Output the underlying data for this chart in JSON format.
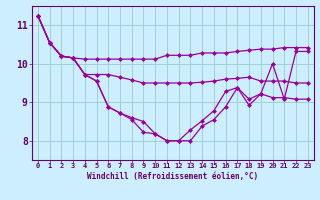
{
  "xlabel": "Windchill (Refroidissement éolien,°C)",
  "bg_color": "#cceeff",
  "line_color": "#990099",
  "grid_color": "#99cccc",
  "xlim": [
    -0.5,
    23.5
  ],
  "ylim": [
    7.5,
    11.5
  ],
  "yticks": [
    8,
    9,
    10,
    11
  ],
  "xticks": [
    0,
    1,
    2,
    3,
    4,
    5,
    6,
    7,
    8,
    9,
    10,
    11,
    12,
    13,
    14,
    15,
    16,
    17,
    18,
    19,
    20,
    21,
    22,
    23
  ],
  "lines": [
    [
      11.25,
      10.55,
      10.2,
      10.15,
      10.12,
      10.12,
      10.12,
      10.12,
      10.12,
      10.12,
      10.12,
      10.22,
      10.22,
      10.22,
      10.28,
      10.28,
      10.28,
      10.32,
      10.35,
      10.38,
      10.38,
      10.42,
      10.42,
      10.42
    ],
    [
      11.25,
      10.55,
      10.2,
      10.15,
      9.72,
      9.72,
      9.72,
      9.65,
      9.58,
      9.5,
      9.5,
      9.5,
      9.5,
      9.5,
      9.52,
      9.55,
      9.6,
      9.62,
      9.65,
      9.55,
      9.55,
      9.55,
      9.5,
      9.5
    ],
    [
      11.25,
      10.55,
      10.2,
      10.15,
      9.72,
      9.55,
      8.88,
      8.72,
      8.6,
      8.5,
      8.18,
      8.0,
      8.0,
      8.28,
      8.52,
      8.78,
      9.28,
      9.38,
      9.08,
      9.22,
      9.12,
      9.12,
      9.08,
      9.08
    ],
    [
      11.25,
      10.55,
      10.2,
      10.15,
      9.72,
      9.55,
      8.88,
      8.72,
      8.55,
      8.22,
      8.18,
      8.0,
      8.0,
      8.0,
      8.38,
      8.55,
      8.88,
      9.38,
      8.92,
      9.22,
      10.0,
      9.08,
      10.32,
      10.32
    ]
  ]
}
